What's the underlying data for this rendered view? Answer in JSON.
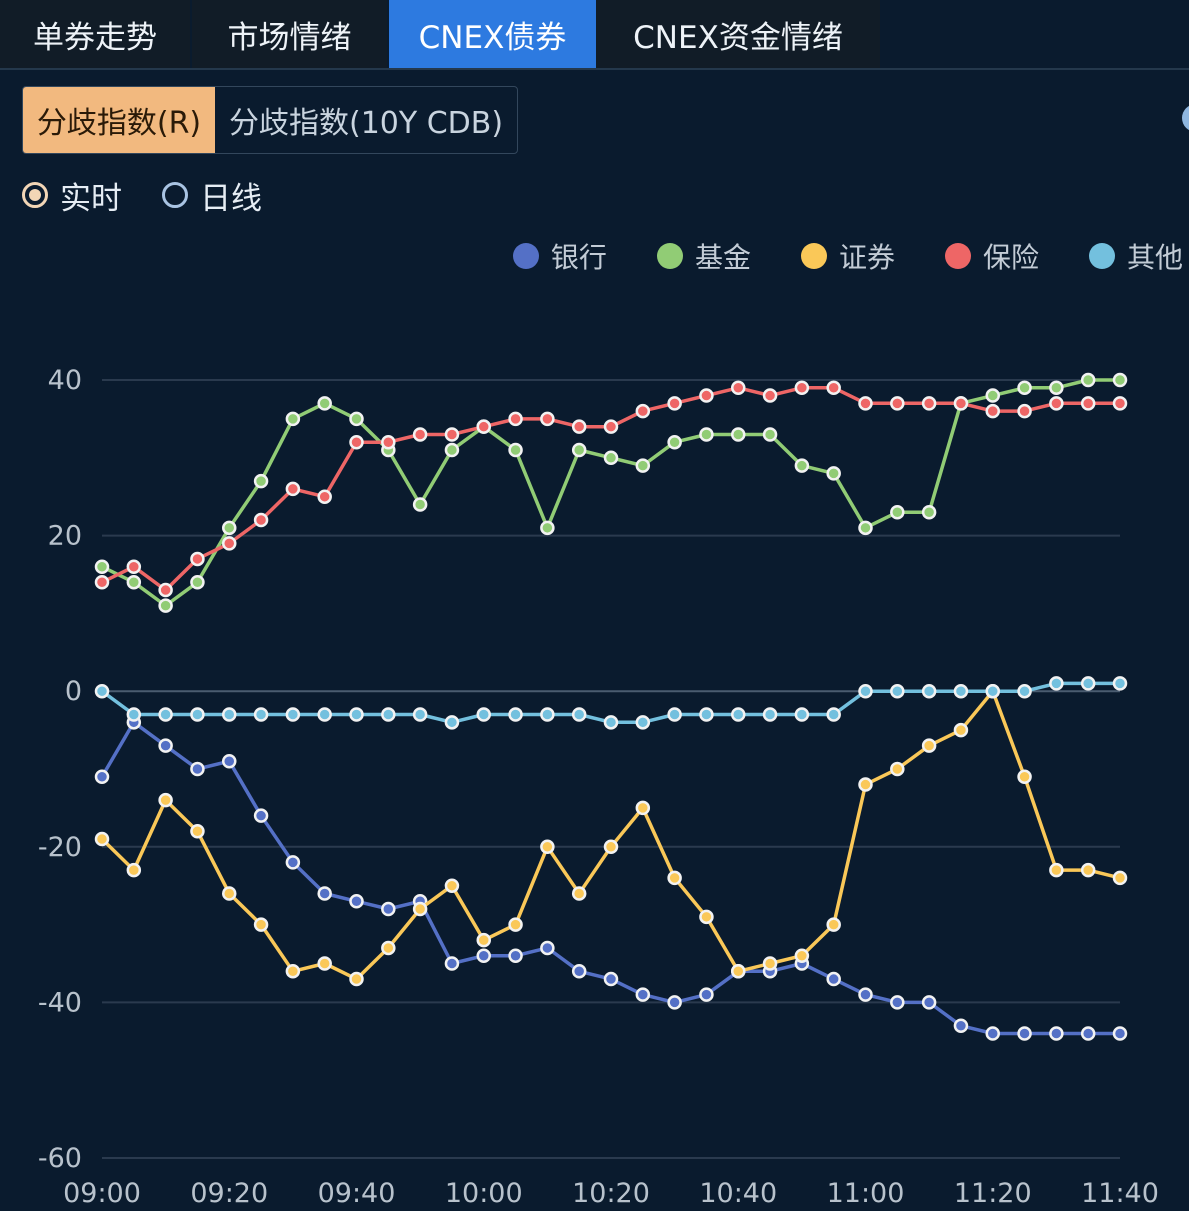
{
  "tabs": [
    {
      "label": "单券走势"
    },
    {
      "label": "市场情绪"
    },
    {
      "label": "CNEX债券"
    },
    {
      "label": "CNEX资金情绪"
    }
  ],
  "subtabs": [
    {
      "label": "分歧指数(R)"
    },
    {
      "label": "分歧指数(10Y CDB)"
    }
  ],
  "radio": {
    "realtime_label": "实时",
    "daily_label": "日线",
    "selected": "实时"
  },
  "colors": {
    "background": "#0a1b2e",
    "tab_active": "#2d7ae0",
    "subtab_active": "#f2b97f"
  },
  "chart_data": {
    "type": "line",
    "title": "",
    "xlabel": "",
    "ylabel": "",
    "ylim": [
      -60,
      40
    ],
    "yticks": [
      40,
      20,
      0,
      -20,
      -40,
      -60
    ],
    "grid": true,
    "legend_position": "top-right",
    "x": [
      "09:00",
      "09:05",
      "09:10",
      "09:15",
      "09:20",
      "09:25",
      "09:30",
      "09:35",
      "09:40",
      "09:45",
      "09:50",
      "09:55",
      "10:00",
      "10:05",
      "10:10",
      "10:15",
      "10:20",
      "10:25",
      "10:30",
      "10:35",
      "10:40",
      "10:45",
      "10:50",
      "10:55",
      "11:00",
      "11:05",
      "11:10",
      "11:15",
      "11:20",
      "11:25",
      "11:30",
      "11:35",
      "11:40"
    ],
    "xticks": [
      "09:00",
      "09:20",
      "09:40",
      "10:00",
      "10:20",
      "10:40",
      "11:00",
      "11:20",
      "11:40"
    ],
    "series": [
      {
        "name": "银行",
        "color": "#5470c6",
        "values": [
          -11,
          -4,
          -7,
          -10,
          -9,
          -16,
          -22,
          -26,
          -27,
          -28,
          -27,
          -35,
          -34,
          -34,
          -33,
          -36,
          -37,
          -39,
          -40,
          -39,
          -36,
          -36,
          -35,
          -37,
          -39,
          -40,
          -40,
          -43,
          -44,
          -44,
          -44,
          -44,
          -44
        ]
      },
      {
        "name": "基金",
        "color": "#91cc75",
        "values": [
          16,
          14,
          11,
          14,
          21,
          27,
          35,
          37,
          35,
          31,
          24,
          31,
          34,
          31,
          21,
          31,
          30,
          29,
          32,
          33,
          33,
          33,
          29,
          28,
          21,
          23,
          23,
          37,
          38,
          39,
          39,
          40,
          40
        ]
      },
      {
        "name": "证券",
        "color": "#fac858",
        "values": [
          -19,
          -23,
          -14,
          -18,
          -26,
          -30,
          -36,
          -35,
          -37,
          -33,
          -28,
          -25,
          -32,
          -30,
          -20,
          -26,
          -20,
          -15,
          -24,
          -29,
          -36,
          -35,
          -34,
          -30,
          -12,
          -10,
          -7,
          -5,
          0,
          -11,
          -23,
          -23,
          -24
        ]
      },
      {
        "name": "保险",
        "color": "#ee6666",
        "values": [
          14,
          16,
          13,
          17,
          19,
          22,
          26,
          25,
          32,
          32,
          33,
          33,
          34,
          35,
          35,
          34,
          34,
          36,
          37,
          38,
          39,
          38,
          39,
          39,
          37,
          37,
          37,
          37,
          36,
          36,
          37,
          37,
          37
        ]
      },
      {
        "name": "其他",
        "color": "#73c0de",
        "values": [
          0,
          -3,
          -3,
          -3,
          -3,
          -3,
          -3,
          -3,
          -3,
          -3,
          -3,
          -4,
          -3,
          -3,
          -3,
          -3,
          -4,
          -4,
          -3,
          -3,
          -3,
          -3,
          -3,
          -3,
          0,
          0,
          0,
          0,
          0,
          0,
          1,
          1,
          1
        ]
      }
    ]
  }
}
